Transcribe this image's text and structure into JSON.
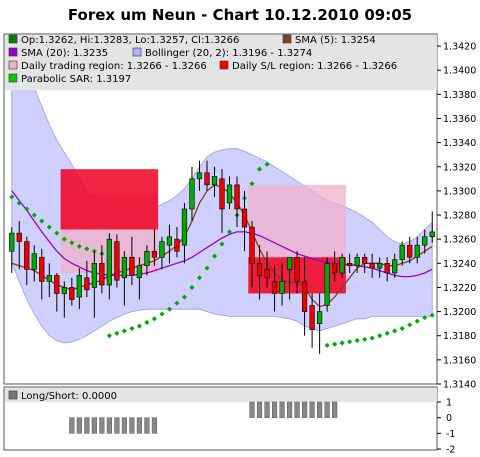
{
  "chart_data": {
    "type": "candlestick",
    "title": "Forex um Neun - Chart 10.12.2010 09:05",
    "colors": {
      "bull": "#00aa00",
      "bear": "#ee0000",
      "bollinger_fill": "#c8c8ff",
      "sma5": "#804020",
      "sma20": "#9900cc",
      "sar": "#00aa00",
      "trading_region": "#f0b0c8",
      "sl_region": "#ee0022"
    },
    "legend": [
      {
        "id": "ohlc",
        "color": "#008000",
        "label": "Op:1.3262, Hi:1.3283, Lo:1.3257, Cl:1.3266"
      },
      {
        "id": "sma5",
        "color": "#804020",
        "label": "SMA (5): 1.3254"
      },
      {
        "id": "sma20",
        "color": "#9900cc",
        "label": "SMA (20): 1.3235"
      },
      {
        "id": "boll",
        "color": "#b0b0ff",
        "label": "Bollinger (20, 2): 1.3196 - 1.3274"
      },
      {
        "id": "daily",
        "color": "#f0b0c8",
        "label": "Daily trading region: 1.3266 - 1.3266"
      },
      {
        "id": "dailysl",
        "color": "#ff0000",
        "label": "Daily S/L region: 1.3266 - 1.3266"
      },
      {
        "id": "sar",
        "color": "#00cc00",
        "label": "Parabolic SAR: 1.3197"
      }
    ],
    "y_axis": {
      "ylim": [
        1.314,
        1.343
      ],
      "ticks": [
        "1.3140",
        "1.3160",
        "1.3180",
        "1.3200",
        "1.3220",
        "1.3240",
        "1.3260",
        "1.3280",
        "1.3300",
        "1.3320",
        "1.3340",
        "1.3360",
        "1.3380",
        "1.3400",
        "1.3420"
      ]
    },
    "candles": [
      {
        "o": 1.325,
        "h": 1.327,
        "l": 1.3232,
        "c": 1.3265
      },
      {
        "o": 1.3265,
        "h": 1.3275,
        "l": 1.3235,
        "c": 1.3258
      },
      {
        "o": 1.3258,
        "h": 1.3262,
        "l": 1.3222,
        "c": 1.3235
      },
      {
        "o": 1.3235,
        "h": 1.3255,
        "l": 1.3225,
        "c": 1.3248
      },
      {
        "o": 1.3245,
        "h": 1.3252,
        "l": 1.321,
        "c": 1.3225
      },
      {
        "o": 1.3225,
        "h": 1.324,
        "l": 1.3212,
        "c": 1.323
      },
      {
        "o": 1.323,
        "h": 1.3232,
        "l": 1.32,
        "c": 1.3215
      },
      {
        "o": 1.3215,
        "h": 1.3225,
        "l": 1.3195,
        "c": 1.322
      },
      {
        "o": 1.322,
        "h": 1.3228,
        "l": 1.3205,
        "c": 1.321
      },
      {
        "o": 1.3212,
        "h": 1.3236,
        "l": 1.3202,
        "c": 1.323
      },
      {
        "o": 1.3228,
        "h": 1.3242,
        "l": 1.3212,
        "c": 1.3218
      },
      {
        "o": 1.322,
        "h": 1.325,
        "l": 1.3195,
        "c": 1.324
      },
      {
        "o": 1.324,
        "h": 1.3255,
        "l": 1.3215,
        "c": 1.3222
      },
      {
        "o": 1.3222,
        "h": 1.3265,
        "l": 1.321,
        "c": 1.326
      },
      {
        "o": 1.3258,
        "h": 1.3264,
        "l": 1.322,
        "c": 1.3226
      },
      {
        "o": 1.3228,
        "h": 1.325,
        "l": 1.3205,
        "c": 1.3245
      },
      {
        "o": 1.3245,
        "h": 1.3262,
        "l": 1.3222,
        "c": 1.323
      },
      {
        "o": 1.3228,
        "h": 1.3245,
        "l": 1.321,
        "c": 1.3238
      },
      {
        "o": 1.3238,
        "h": 1.3255,
        "l": 1.323,
        "c": 1.325
      },
      {
        "o": 1.325,
        "h": 1.3268,
        "l": 1.3238,
        "c": 1.3245
      },
      {
        "o": 1.3245,
        "h": 1.3262,
        "l": 1.3235,
        "c": 1.3258
      },
      {
        "o": 1.3255,
        "h": 1.3272,
        "l": 1.324,
        "c": 1.3262
      },
      {
        "o": 1.326,
        "h": 1.327,
        "l": 1.3245,
        "c": 1.325
      },
      {
        "o": 1.3255,
        "h": 1.329,
        "l": 1.324,
        "c": 1.3285
      },
      {
        "o": 1.3285,
        "h": 1.332,
        "l": 1.3275,
        "c": 1.331
      },
      {
        "o": 1.331,
        "h": 1.3325,
        "l": 1.33,
        "c": 1.3315
      },
      {
        "o": 1.3315,
        "h": 1.3325,
        "l": 1.33,
        "c": 1.3305
      },
      {
        "o": 1.3305,
        "h": 1.332,
        "l": 1.3295,
        "c": 1.3312
      },
      {
        "o": 1.331,
        "h": 1.3318,
        "l": 1.3265,
        "c": 1.3285
      },
      {
        "o": 1.329,
        "h": 1.3312,
        "l": 1.3285,
        "c": 1.3305
      },
      {
        "o": 1.3305,
        "h": 1.3312,
        "l": 1.327,
        "c": 1.3285
      },
      {
        "o": 1.3285,
        "h": 1.33,
        "l": 1.325,
        "c": 1.327
      },
      {
        "o": 1.327,
        "h": 1.3275,
        "l": 1.322,
        "c": 1.324
      },
      {
        "o": 1.324,
        "h": 1.3255,
        "l": 1.321,
        "c": 1.323
      },
      {
        "o": 1.3235,
        "h": 1.325,
        "l": 1.322,
        "c": 1.3228
      },
      {
        "o": 1.3225,
        "h": 1.3238,
        "l": 1.32,
        "c": 1.3215
      },
      {
        "o": 1.3215,
        "h": 1.324,
        "l": 1.3205,
        "c": 1.3225
      },
      {
        "o": 1.3235,
        "h": 1.3245,
        "l": 1.321,
        "c": 1.3245
      },
      {
        "o": 1.3245,
        "h": 1.325,
        "l": 1.3215,
        "c": 1.3225
      },
      {
        "o": 1.3225,
        "h": 1.3245,
        "l": 1.318,
        "c": 1.32
      },
      {
        "o": 1.3205,
        "h": 1.3215,
        "l": 1.317,
        "c": 1.3185
      },
      {
        "o": 1.319,
        "h": 1.3215,
        "l": 1.3165,
        "c": 1.32
      },
      {
        "o": 1.3205,
        "h": 1.3245,
        "l": 1.32,
        "c": 1.324
      },
      {
        "o": 1.324,
        "h": 1.325,
        "l": 1.3225,
        "c": 1.3232
      },
      {
        "o": 1.3232,
        "h": 1.3248,
        "l": 1.3228,
        "c": 1.3245
      },
      {
        "o": 1.324,
        "h": 1.3248,
        "l": 1.3232,
        "c": 1.3238
      },
      {
        "o": 1.3238,
        "h": 1.3248,
        "l": 1.3232,
        "c": 1.3245
      },
      {
        "o": 1.3245,
        "h": 1.3248,
        "l": 1.3232,
        "c": 1.324
      },
      {
        "o": 1.324,
        "h": 1.3248,
        "l": 1.3228,
        "c": 1.3236
      },
      {
        "o": 1.3236,
        "h": 1.3245,
        "l": 1.3228,
        "c": 1.324
      },
      {
        "o": 1.324,
        "h": 1.3245,
        "l": 1.3225,
        "c": 1.3232
      },
      {
        "o": 1.3232,
        "h": 1.3248,
        "l": 1.3228,
        "c": 1.3243
      },
      {
        "o": 1.3243,
        "h": 1.3258,
        "l": 1.3238,
        "c": 1.3255
      },
      {
        "o": 1.3255,
        "h": 1.3262,
        "l": 1.324,
        "c": 1.3245
      },
      {
        "o": 1.3245,
        "h": 1.3262,
        "l": 1.324,
        "c": 1.3255
      },
      {
        "o": 1.3255,
        "h": 1.3268,
        "l": 1.3248,
        "c": 1.3262
      },
      {
        "o": 1.3262,
        "h": 1.3283,
        "l": 1.3257,
        "c": 1.3266
      }
    ],
    "sma5": [
      1.324,
      1.3238,
      1.3236,
      1.3234,
      1.323,
      1.3226,
      1.3222,
      1.322,
      1.3218,
      1.322,
      1.3222,
      1.3224,
      1.3226,
      1.323,
      1.3232,
      1.3234,
      1.3236,
      1.3238,
      1.324,
      1.3242,
      1.3246,
      1.325,
      1.3255,
      1.3262,
      1.3275,
      1.329,
      1.33,
      1.3305,
      1.3303,
      1.3298,
      1.329,
      1.328,
      1.3266,
      1.3252,
      1.324,
      1.3232,
      1.3226,
      1.3224,
      1.3224,
      1.322,
      1.321,
      1.3204,
      1.3206,
      1.3212,
      1.322,
      1.3228,
      1.3236,
      1.324,
      1.324,
      1.324,
      1.3238,
      1.3238,
      1.324,
      1.3242,
      1.3246,
      1.325,
      1.3254
    ],
    "sma20": [
      1.33,
      1.3292,
      1.3284,
      1.3275,
      1.3266,
      1.3258,
      1.325,
      1.3244,
      1.324,
      1.3237,
      1.3234,
      1.3232,
      1.3231,
      1.323,
      1.323,
      1.323,
      1.323,
      1.3231,
      1.3232,
      1.3234,
      1.3236,
      1.3238,
      1.324,
      1.3242,
      1.3245,
      1.3249,
      1.3253,
      1.3257,
      1.3261,
      1.3264,
      1.3266,
      1.3266,
      1.3265,
      1.3263,
      1.326,
      1.3257,
      1.3254,
      1.3251,
      1.3248,
      1.3246,
      1.3244,
      1.3242,
      1.3241,
      1.324,
      1.3239,
      1.3239,
      1.3238,
      1.3237,
      1.3236,
      1.3234,
      1.3232,
      1.323,
      1.3229,
      1.3229,
      1.323,
      1.3232,
      1.3235
    ],
    "boll_upper": [
      1.342,
      1.3412,
      1.34,
      1.3385,
      1.337,
      1.3355,
      1.3342,
      1.3332,
      1.3322,
      1.331,
      1.33,
      1.3292,
      1.3287,
      1.3285,
      1.3284,
      1.3283,
      1.3282,
      1.3283,
      1.3284,
      1.3286,
      1.3289,
      1.3292,
      1.3296,
      1.3302,
      1.331,
      1.332,
      1.3328,
      1.3332,
      1.3334,
      1.3335,
      1.3335,
      1.3333,
      1.333,
      1.3327,
      1.3324,
      1.332,
      1.3316,
      1.3312,
      1.3308,
      1.3304,
      1.33,
      1.3296,
      1.3292,
      1.329,
      1.3288,
      1.3285,
      1.3282,
      1.3278,
      1.3274,
      1.3268,
      1.3262,
      1.3258,
      1.3256,
      1.3258,
      1.3262,
      1.3268,
      1.3274
    ],
    "boll_lower": [
      1.324,
      1.3225,
      1.321,
      1.3198,
      1.3188,
      1.318,
      1.3176,
      1.3174,
      1.3175,
      1.3177,
      1.318,
      1.3184,
      1.3188,
      1.3192,
      1.3195,
      1.3198,
      1.32,
      1.3201,
      1.3202,
      1.3202,
      1.3202,
      1.3202,
      1.3202,
      1.3202,
      1.3202,
      1.3202,
      1.32,
      1.3198,
      1.3197,
      1.3196,
      1.3196,
      1.3196,
      1.3196,
      1.3196,
      1.3196,
      1.3196,
      1.3195,
      1.3194,
      1.3192,
      1.3188,
      1.3186,
      1.3184,
      1.3186,
      1.3188,
      1.319,
      1.3192,
      1.3194,
      1.3194,
      1.3196,
      1.3196,
      1.3196,
      1.3196,
      1.3196,
      1.3196,
      1.3196,
      1.3196,
      1.3196
    ],
    "sar": [
      {
        "i": 0,
        "v": 1.3295
      },
      {
        "i": 1,
        "v": 1.329
      },
      {
        "i": 2,
        "v": 1.3285
      },
      {
        "i": 3,
        "v": 1.328
      },
      {
        "i": 4,
        "v": 1.3275
      },
      {
        "i": 5,
        "v": 1.327
      },
      {
        "i": 6,
        "v": 1.3265
      },
      {
        "i": 7,
        "v": 1.326
      },
      {
        "i": 8,
        "v": 1.3257
      },
      {
        "i": 9,
        "v": 1.3254
      },
      {
        "i": 10,
        "v": 1.3252
      },
      {
        "i": 11,
        "v": 1.325
      },
      {
        "i": 12,
        "v": 1.3248
      },
      {
        "i": 13,
        "v": 1.318
      },
      {
        "i": 14,
        "v": 1.3182
      },
      {
        "i": 15,
        "v": 1.3184
      },
      {
        "i": 16,
        "v": 1.3186
      },
      {
        "i": 17,
        "v": 1.3188
      },
      {
        "i": 18,
        "v": 1.3191
      },
      {
        "i": 19,
        "v": 1.3194
      },
      {
        "i": 20,
        "v": 1.3198
      },
      {
        "i": 21,
        "v": 1.3202
      },
      {
        "i": 22,
        "v": 1.3207
      },
      {
        "i": 23,
        "v": 1.3212
      },
      {
        "i": 24,
        "v": 1.322
      },
      {
        "i": 25,
        "v": 1.3228
      },
      {
        "i": 26,
        "v": 1.3236
      },
      {
        "i": 27,
        "v": 1.3246
      },
      {
        "i": 28,
        "v": 1.3256
      },
      {
        "i": 29,
        "v": 1.3266
      },
      {
        "i": 30,
        "v": 1.328
      },
      {
        "i": 31,
        "v": 1.3294
      },
      {
        "i": 32,
        "v": 1.3306
      },
      {
        "i": 33,
        "v": 1.3318
      },
      {
        "i": 34,
        "v": 1.3322
      },
      {
        "i": 42,
        "v": 1.3172
      },
      {
        "i": 43,
        "v": 1.3173
      },
      {
        "i": 44,
        "v": 1.3174
      },
      {
        "i": 45,
        "v": 1.3175
      },
      {
        "i": 46,
        "v": 1.3176
      },
      {
        "i": 47,
        "v": 1.3177
      },
      {
        "i": 48,
        "v": 1.3178
      },
      {
        "i": 49,
        "v": 1.318
      },
      {
        "i": 50,
        "v": 1.3182
      },
      {
        "i": 51,
        "v": 1.3184
      },
      {
        "i": 52,
        "v": 1.3186
      },
      {
        "i": 53,
        "v": 1.3189
      },
      {
        "i": 54,
        "v": 1.3192
      },
      {
        "i": 55,
        "v": 1.3195
      },
      {
        "i": 56,
        "v": 1.3197
      }
    ],
    "regions": [
      {
        "name": "trading-1",
        "kind": "trading",
        "i0": 7,
        "i1": 19,
        "low": 1.3232,
        "high": 1.3298
      },
      {
        "name": "sl-1",
        "kind": "sl",
        "i0": 7,
        "i1": 19,
        "low": 1.3268,
        "high": 1.3318
      },
      {
        "name": "trading-2",
        "kind": "trading",
        "i0": 32,
        "i1": 44,
        "low": 1.3215,
        "high": 1.3305
      },
      {
        "name": "sl-2",
        "kind": "sl",
        "i0": 32,
        "i1": 44,
        "low": 1.3215,
        "high": 1.3245
      }
    ],
    "lower_panel": {
      "legend": "Long/Short: 0.0000",
      "ylim": [
        -2,
        1
      ],
      "ticks": [
        "1",
        "0",
        "-1",
        "-2"
      ],
      "bars": [
        {
          "i": 8,
          "v": -1
        },
        {
          "i": 9,
          "v": -1
        },
        {
          "i": 10,
          "v": -1
        },
        {
          "i": 11,
          "v": -1
        },
        {
          "i": 12,
          "v": -1
        },
        {
          "i": 13,
          "v": -1
        },
        {
          "i": 14,
          "v": -1
        },
        {
          "i": 15,
          "v": -1
        },
        {
          "i": 16,
          "v": -1
        },
        {
          "i": 17,
          "v": -1
        },
        {
          "i": 18,
          "v": -1
        },
        {
          "i": 19,
          "v": -1
        },
        {
          "i": 32,
          "v": 1
        },
        {
          "i": 33,
          "v": 1
        },
        {
          "i": 34,
          "v": 1
        },
        {
          "i": 35,
          "v": 1
        },
        {
          "i": 36,
          "v": 1
        },
        {
          "i": 37,
          "v": 1
        },
        {
          "i": 38,
          "v": 1
        },
        {
          "i": 39,
          "v": 1
        },
        {
          "i": 40,
          "v": 1
        },
        {
          "i": 41,
          "v": 1
        },
        {
          "i": 42,
          "v": 1
        },
        {
          "i": 43,
          "v": 1
        }
      ]
    }
  }
}
